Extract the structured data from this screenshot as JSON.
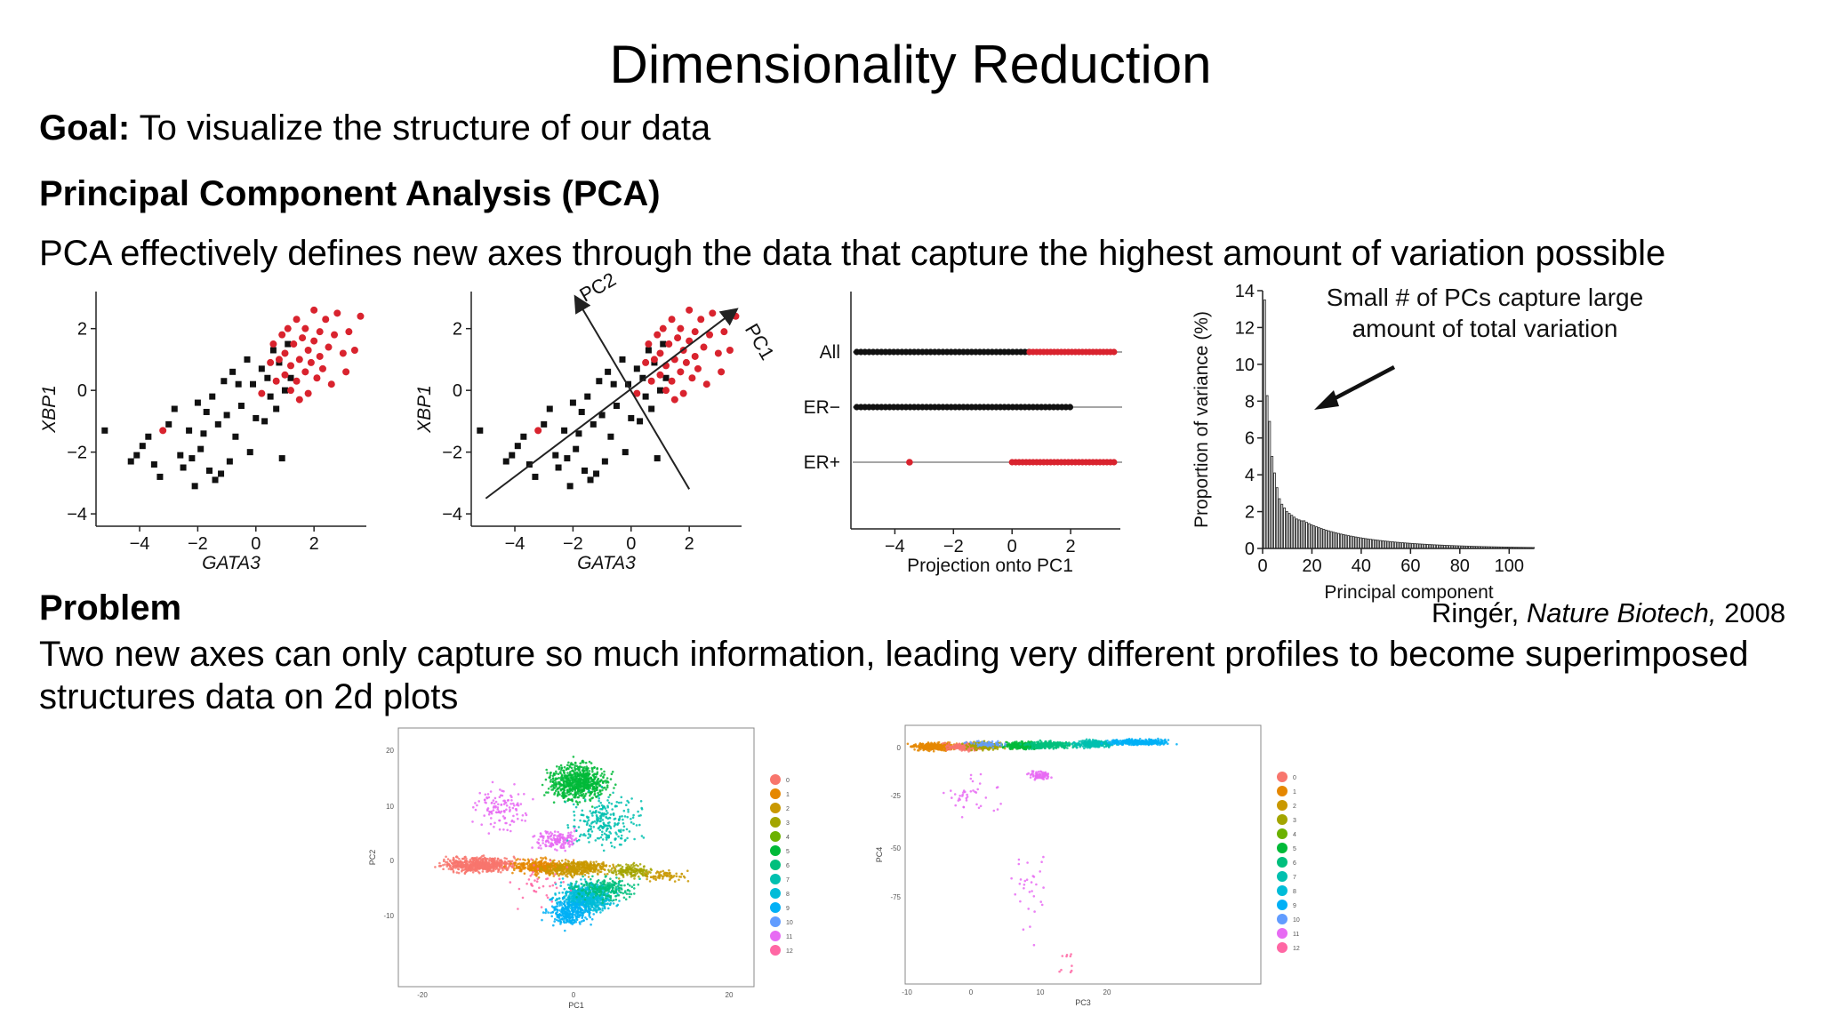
{
  "slide": {
    "title": "Dimensionality Reduction",
    "goal_label": "Goal:",
    "goal_text": " To visualize the structure of our data",
    "pca_heading": "Principal Component Analysis (PCA)",
    "pca_description": "PCA effectively defines new axes through the data that capture the highest amount of variation possible",
    "problem_heading": "Problem",
    "problem_description": "Two new axes can only capture so much information, leading very different profiles to become superimposed structures data on 2d plots",
    "citation_author": "Ringér, ",
    "citation_journal": "Nature Biotech,",
    "citation_year": " 2008"
  },
  "colors": {
    "black_points": "#111111",
    "red_points": "#d9232e",
    "bars": "#333333",
    "axis": "#222222"
  },
  "chart_data": [
    {
      "type": "scatter",
      "xlabel": "GATA3",
      "ylabel": "XBP1",
      "xticks": [
        "−4",
        "−2",
        "0",
        "2"
      ],
      "yticks": [
        "−4",
        "−2",
        "0",
        "2"
      ],
      "xlim": [
        -5.5,
        3.8
      ],
      "ylim": [
        -4.4,
        3.2
      ],
      "series": [
        {
          "color": "#111111",
          "marker": "square",
          "points": [
            [
              -5.2,
              -1.3
            ],
            [
              -4.3,
              -2.3
            ],
            [
              -4.1,
              -2.1
            ],
            [
              -3.9,
              -1.8
            ],
            [
              -3.7,
              -1.5
            ],
            [
              -3.5,
              -2.4
            ],
            [
              -3.3,
              -2.8
            ],
            [
              -3.0,
              -1.1
            ],
            [
              -2.8,
              -0.6
            ],
            [
              -2.6,
              -2.1
            ],
            [
              -2.5,
              -2.5
            ],
            [
              -2.3,
              -1.3
            ],
            [
              -2.2,
              -2.2
            ],
            [
              -2.1,
              -3.1
            ],
            [
              -2.0,
              -0.4
            ],
            [
              -1.9,
              -1.9
            ],
            [
              -1.8,
              -1.4
            ],
            [
              -1.7,
              -0.7
            ],
            [
              -1.6,
              -2.6
            ],
            [
              -1.5,
              -0.2
            ],
            [
              -1.4,
              -2.9
            ],
            [
              -1.3,
              -1.1
            ],
            [
              -1.2,
              -2.7
            ],
            [
              -1.1,
              0.3
            ],
            [
              -1.0,
              -0.8
            ],
            [
              -0.9,
              -2.3
            ],
            [
              -0.8,
              0.6
            ],
            [
              -0.7,
              -1.5
            ],
            [
              -0.6,
              0.2
            ],
            [
              -0.5,
              -0.5
            ],
            [
              -0.3,
              1.0
            ],
            [
              -0.2,
              -2.0
            ],
            [
              -0.1,
              0.2
            ],
            [
              0.0,
              -0.9
            ],
            [
              0.2,
              0.7
            ],
            [
              0.3,
              -1.0
            ],
            [
              0.4,
              0.4
            ],
            [
              0.5,
              -0.2
            ],
            [
              0.6,
              1.3
            ],
            [
              0.7,
              -0.6
            ],
            [
              0.8,
              0.9
            ],
            [
              0.9,
              -2.2
            ],
            [
              1.0,
              0.0
            ],
            [
              1.1,
              1.5
            ],
            [
              1.2,
              0.4
            ]
          ]
        },
        {
          "color": "#d9232e",
          "marker": "circle",
          "points": [
            [
              -3.2,
              -1.3
            ],
            [
              0.2,
              -0.1
            ],
            [
              0.5,
              0.9
            ],
            [
              0.6,
              1.5
            ],
            [
              0.7,
              0.3
            ],
            [
              0.8,
              1.0
            ],
            [
              0.9,
              1.8
            ],
            [
              1.0,
              0.5
            ],
            [
              1.0,
              1.2
            ],
            [
              1.1,
              2.0
            ],
            [
              1.2,
              0.0
            ],
            [
              1.2,
              0.8
            ],
            [
              1.3,
              1.5
            ],
            [
              1.4,
              2.3
            ],
            [
              1.4,
              0.3
            ],
            [
              1.5,
              1.0
            ],
            [
              1.5,
              -0.3
            ],
            [
              1.6,
              1.7
            ],
            [
              1.7,
              0.6
            ],
            [
              1.7,
              2.0
            ],
            [
              1.8,
              1.3
            ],
            [
              1.8,
              -0.1
            ],
            [
              1.9,
              0.9
            ],
            [
              2.0,
              1.6
            ],
            [
              2.0,
              2.6
            ],
            [
              2.1,
              0.4
            ],
            [
              2.2,
              1.1
            ],
            [
              2.2,
              1.9
            ],
            [
              2.3,
              0.7
            ],
            [
              2.4,
              2.3
            ],
            [
              2.5,
              1.4
            ],
            [
              2.6,
              0.2
            ],
            [
              2.7,
              1.8
            ],
            [
              2.8,
              2.5
            ],
            [
              3.0,
              1.2
            ],
            [
              3.1,
              0.6
            ],
            [
              3.2,
              1.9
            ],
            [
              3.4,
              1.3
            ],
            [
              3.6,
              2.4
            ]
          ]
        }
      ]
    },
    {
      "type": "scatter",
      "xlabel": "GATA3",
      "ylabel": "XBP1",
      "xticks": [
        "−4",
        "−2",
        "0",
        "2"
      ],
      "yticks": [
        "−4",
        "−2",
        "0",
        "2"
      ],
      "axis_labels": [
        "PC1",
        "PC2"
      ],
      "note": "same points as the first scatter with PC1 and PC2 arrows drawn through the data"
    },
    {
      "type": "strip",
      "categories": [
        "All",
        "ER−",
        "ER+"
      ],
      "xlabel": "Projection onto PC1",
      "xticks": [
        "−4",
        "−2",
        "0",
        "2"
      ],
      "xlim": [
        -5.5,
        4.0
      ],
      "series": [
        {
          "category": "All",
          "black_range": [
            -5.3,
            0.6
          ],
          "red_range": [
            0.6,
            3.6
          ]
        },
        {
          "category": "ER−",
          "black_range": [
            -5.3,
            2.0
          ],
          "red_range": null
        },
        {
          "category": "ER+",
          "black_range": null,
          "red_range": [
            0.0,
            3.6
          ],
          "red_outlier": -3.5
        }
      ]
    },
    {
      "type": "bar",
      "xlabel": "Principal component",
      "ylabel": "Proportion of variance (%)",
      "ylim": [
        0,
        14
      ],
      "xlim": [
        0,
        110
      ],
      "xticks": [
        0,
        20,
        40,
        60,
        80,
        100
      ],
      "yticks": [
        0,
        2,
        4,
        6,
        8,
        10,
        12,
        14
      ],
      "first_values": [
        13.5,
        8.3,
        6.9,
        5.0,
        4.1,
        3.3,
        2.7,
        2.4,
        2.2,
        2.0,
        1.9,
        1.8,
        1.7,
        1.6,
        1.55,
        1.5
      ],
      "tail_start": 1.5,
      "tail_end": 0.05,
      "bar_count": 110,
      "annotation": "Small # of PCs capture large\namount of total variation"
    },
    {
      "type": "scatter",
      "xlabel": "PC1",
      "ylabel": "PC2",
      "xticks": [
        "-20",
        "0",
        "20"
      ],
      "yticks": [
        "20",
        "10",
        "0",
        "-10"
      ],
      "legend": [
        "0",
        "1",
        "2",
        "3",
        "4",
        "5",
        "6",
        "7",
        "8",
        "9",
        "10",
        "11",
        "12"
      ],
      "legend_colors": [
        "#f8766d",
        "#e58700",
        "#c99800",
        "#a3a500",
        "#6bb100",
        "#00ba38",
        "#00bf7d",
        "#00c0af",
        "#00bcd8",
        "#00b0f6",
        "#619cff",
        "#e76bf3",
        "#ff67a4"
      ]
    },
    {
      "type": "scatter",
      "xlabel": "PC3",
      "ylabel": "PC4",
      "xticks": [
        "-10",
        "0",
        "10",
        "20"
      ],
      "yticks": [
        "0",
        "-25",
        "-50",
        "-75"
      ],
      "legend": [
        "0",
        "1",
        "2",
        "3",
        "4",
        "5",
        "6",
        "7",
        "8",
        "9",
        "10",
        "11",
        "12"
      ],
      "legend_colors": [
        "#f8766d",
        "#e58700",
        "#c99800",
        "#a3a500",
        "#6bb100",
        "#00ba38",
        "#00bf7d",
        "#00c0af",
        "#00bcd8",
        "#00b0f6",
        "#619cff",
        "#e76bf3",
        "#ff67a4"
      ]
    }
  ]
}
